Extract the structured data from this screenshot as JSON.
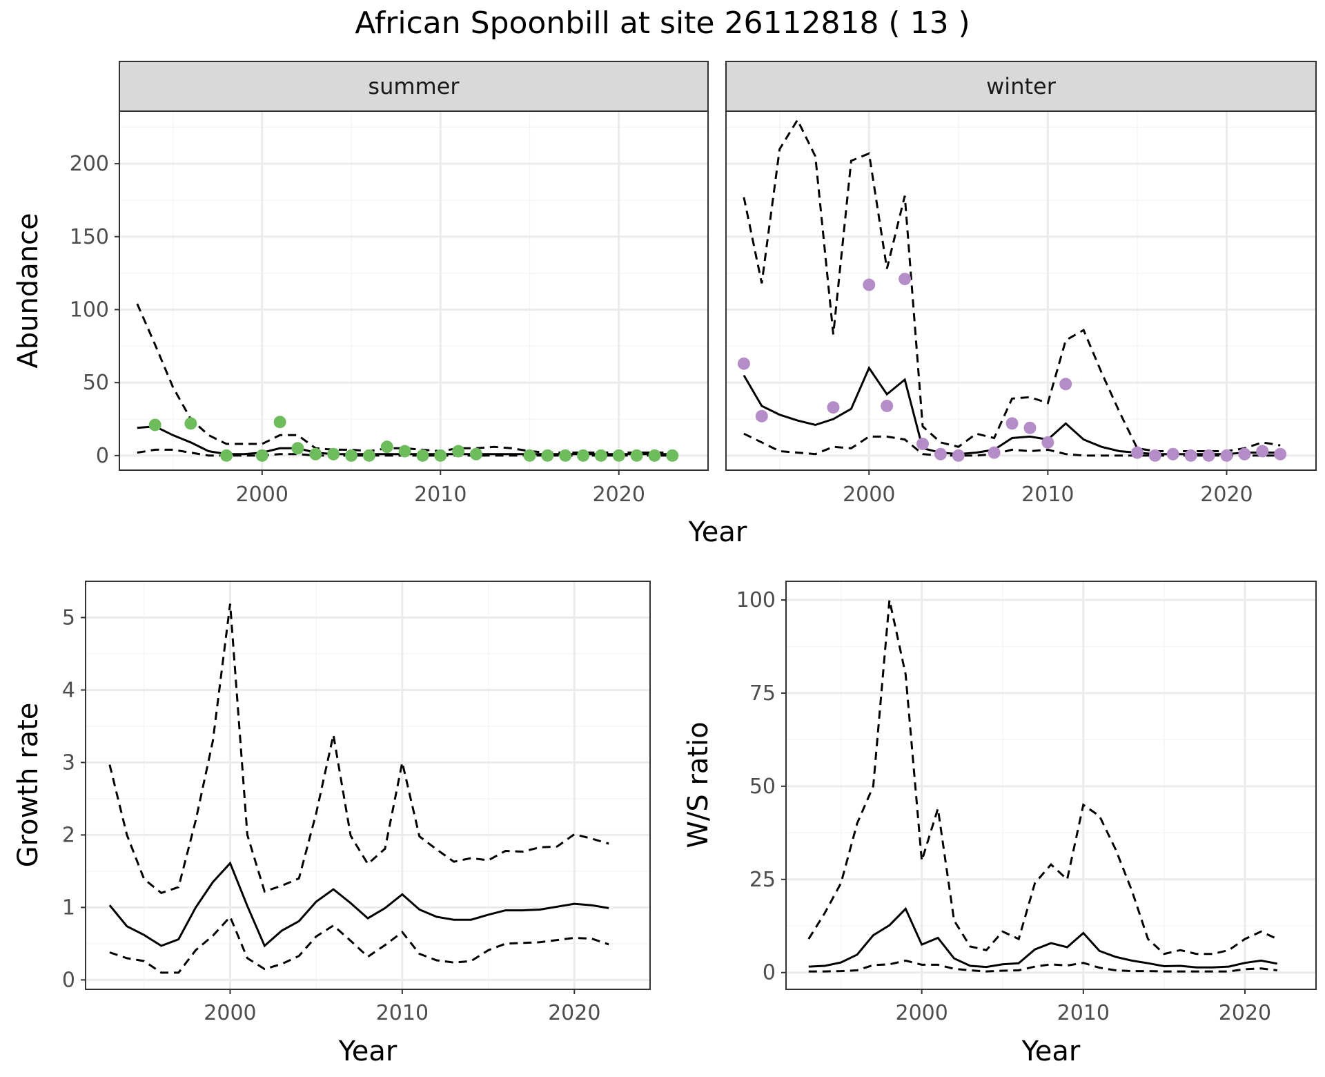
{
  "title": "African Spoonbill at site 26112818 ( 13 )",
  "colors": {
    "summer_points": "#6dbd5d",
    "winter_points": "#b48cc8",
    "line": "#000000",
    "panel_border": "#333333",
    "strip_fill": "#d9d9d9",
    "grid_major": "#ebebeb",
    "grid_minor": "#f5f5f5"
  },
  "chart_data": [
    {
      "type": "line",
      "panel": "summer",
      "xlabel": "Year",
      "ylabel": "Abundance",
      "xlim": [
        1992,
        2025
      ],
      "ylim": [
        -10,
        236
      ],
      "xticks": [
        2000,
        2010,
        2020
      ],
      "yticks": [
        0,
        50,
        100,
        150,
        200
      ],
      "grid": true,
      "x": [
        1993,
        1994,
        1995,
        1996,
        1997,
        1998,
        1999,
        2000,
        2001,
        2002,
        2003,
        2004,
        2005,
        2006,
        2007,
        2008,
        2009,
        2010,
        2011,
        2012,
        2013,
        2014,
        2015,
        2016,
        2017,
        2018,
        2019,
        2020,
        2021,
        2022,
        2023
      ],
      "estimate": [
        19,
        20,
        14,
        9,
        3,
        1,
        1,
        2,
        5,
        5,
        2,
        1,
        1,
        1,
        1,
        1,
        1,
        1,
        1,
        1,
        1,
        1,
        1,
        1,
        1,
        1,
        1,
        1,
        1,
        1,
        1
      ],
      "upper": [
        104,
        76,
        47,
        25,
        14,
        8,
        8,
        8,
        14,
        14,
        5,
        4,
        4,
        3,
        5,
        5,
        4,
        3,
        5,
        5,
        6,
        5,
        3,
        2,
        2,
        2,
        2,
        2,
        2,
        2,
        2
      ],
      "lower": [
        2,
        4,
        4,
        2,
        0,
        0,
        0,
        0,
        1,
        1,
        0,
        0,
        0,
        0,
        0,
        0,
        0,
        0,
        0,
        0,
        0,
        0,
        0,
        0,
        0,
        0,
        0,
        0,
        0,
        0,
        0
      ],
      "observed": [
        [
          1994,
          21
        ],
        [
          1996,
          22
        ],
        [
          1998,
          0
        ],
        [
          2000,
          0
        ],
        [
          2001,
          23
        ],
        [
          2002,
          5
        ],
        [
          2003,
          1
        ],
        [
          2004,
          1
        ],
        [
          2005,
          0
        ],
        [
          2006,
          0
        ],
        [
          2007,
          6
        ],
        [
          2008,
          3
        ],
        [
          2009,
          0
        ],
        [
          2010,
          0
        ],
        [
          2011,
          3
        ],
        [
          2012,
          1
        ],
        [
          2015,
          0
        ],
        [
          2016,
          0
        ],
        [
          2017,
          0
        ],
        [
          2018,
          0
        ],
        [
          2019,
          0
        ],
        [
          2020,
          0
        ],
        [
          2021,
          0
        ],
        [
          2022,
          0
        ],
        [
          2023,
          0
        ]
      ]
    },
    {
      "type": "line",
      "panel": "winter",
      "xlabel": "Year",
      "ylabel": "",
      "xlim": [
        1992,
        2025
      ],
      "ylim": [
        -10,
        236
      ],
      "xticks": [
        2000,
        2010,
        2020
      ],
      "yticks": [
        0,
        50,
        100,
        150,
        200
      ],
      "grid": true,
      "x": [
        1993,
        1994,
        1995,
        1996,
        1997,
        1998,
        1999,
        2000,
        2001,
        2002,
        2003,
        2004,
        2005,
        2006,
        2007,
        2008,
        2009,
        2010,
        2011,
        2012,
        2013,
        2014,
        2015,
        2016,
        2017,
        2018,
        2019,
        2020,
        2021,
        2022,
        2023
      ],
      "estimate": [
        55,
        34,
        28,
        24,
        21,
        25,
        32,
        60,
        42,
        52,
        5,
        2,
        1,
        2,
        4,
        12,
        13,
        11,
        22,
        11,
        6,
        3,
        2,
        1,
        1,
        1,
        1,
        1,
        2,
        2,
        2
      ],
      "upper": [
        177,
        118,
        210,
        230,
        205,
        83,
        202,
        207,
        128,
        178,
        20,
        9,
        6,
        15,
        12,
        39,
        40,
        36,
        79,
        86,
        57,
        30,
        5,
        3,
        3,
        3,
        3,
        3,
        5,
        9,
        7
      ],
      "lower": [
        15,
        9,
        3,
        2,
        1,
        6,
        5,
        13,
        13,
        11,
        1,
        0,
        0,
        0,
        1,
        4,
        3,
        4,
        1,
        0,
        0,
        0,
        0,
        0,
        0,
        0,
        0,
        0,
        0,
        0,
        0
      ],
      "observed": [
        [
          1993,
          63
        ],
        [
          1994,
          27
        ],
        [
          1998,
          33
        ],
        [
          2000,
          117
        ],
        [
          2001,
          34
        ],
        [
          2002,
          121
        ],
        [
          2003,
          8
        ],
        [
          2004,
          1
        ],
        [
          2005,
          0
        ],
        [
          2007,
          2
        ],
        [
          2008,
          22
        ],
        [
          2009,
          19
        ],
        [
          2010,
          9
        ],
        [
          2011,
          49
        ],
        [
          2015,
          2
        ],
        [
          2016,
          0
        ],
        [
          2017,
          1
        ],
        [
          2018,
          0
        ],
        [
          2019,
          0
        ],
        [
          2020,
          0
        ],
        [
          2021,
          1
        ],
        [
          2022,
          3
        ],
        [
          2023,
          1
        ]
      ]
    },
    {
      "type": "line",
      "panel": "growth",
      "xlabel": "Year",
      "ylabel": "Growth rate",
      "xlim": [
        1991.6,
        2024.4
      ],
      "ylim": [
        -0.13,
        5.5
      ],
      "xticks": [
        2000,
        2010,
        2020
      ],
      "yticks": [
        0,
        1,
        2,
        3,
        4,
        5
      ],
      "grid": true,
      "x": [
        1993,
        1994,
        1995,
        1996,
        1997,
        1998,
        1999,
        2000,
        2001,
        2002,
        2003,
        2004,
        2005,
        2006,
        2007,
        2008,
        2009,
        2010,
        2011,
        2012,
        2013,
        2014,
        2015,
        2016,
        2017,
        2018,
        2019,
        2020,
        2021,
        2022
      ],
      "estimate": [
        1.03,
        0.74,
        0.62,
        0.47,
        0.56,
        1.0,
        1.35,
        1.61,
        1.02,
        0.47,
        0.68,
        0.81,
        1.08,
        1.25,
        1.06,
        0.85,
        0.99,
        1.18,
        0.97,
        0.87,
        0.83,
        0.83,
        0.9,
        0.96,
        0.96,
        0.97,
        1.01,
        1.05,
        1.03,
        0.99
      ],
      "upper": [
        2.97,
        2.0,
        1.39,
        1.2,
        1.28,
        2.2,
        3.3,
        5.19,
        2.0,
        1.22,
        1.3,
        1.4,
        2.3,
        3.38,
        1.99,
        1.6,
        1.81,
        3.0,
        1.98,
        1.8,
        1.63,
        1.68,
        1.65,
        1.78,
        1.77,
        1.83,
        1.84,
        2.01,
        1.95,
        1.88
      ],
      "lower": [
        0.38,
        0.3,
        0.26,
        0.1,
        0.1,
        0.41,
        0.61,
        0.87,
        0.3,
        0.15,
        0.22,
        0.33,
        0.6,
        0.75,
        0.54,
        0.32,
        0.48,
        0.66,
        0.36,
        0.27,
        0.24,
        0.26,
        0.41,
        0.5,
        0.51,
        0.52,
        0.55,
        0.58,
        0.57,
        0.49
      ]
    },
    {
      "type": "line",
      "panel": "ws_ratio",
      "xlabel": "Year",
      "ylabel": "W/S ratio",
      "xlim": [
        1991.6,
        2024.4
      ],
      "ylim": [
        -4.5,
        105
      ],
      "xticks": [
        2000,
        2010,
        2020
      ],
      "yticks": [
        0,
        25,
        50,
        75,
        100
      ],
      "grid": true,
      "x": [
        1993,
        1994,
        1995,
        1996,
        1997,
        1998,
        1999,
        2000,
        2001,
        2002,
        2003,
        2004,
        2005,
        2006,
        2007,
        2008,
        2009,
        2010,
        2011,
        2012,
        2013,
        2014,
        2015,
        2016,
        2017,
        2018,
        2019,
        2020,
        2021,
        2022
      ],
      "estimate": [
        1.6,
        1.8,
        2.7,
        4.8,
        10,
        12.7,
        17.1,
        7.5,
        9.3,
        3.8,
        1.8,
        1.5,
        2.2,
        2.5,
        6.2,
        7.9,
        6.8,
        10.6,
        5.8,
        4.2,
        3.2,
        2.5,
        1.7,
        1.8,
        1.4,
        1.4,
        1.6,
        2.6,
        3.2,
        2.4
      ],
      "upper": [
        9,
        16,
        24,
        40,
        50,
        100,
        80,
        30,
        44,
        14,
        7,
        6,
        11,
        9,
        24,
        29,
        25,
        45,
        42,
        33,
        22,
        9,
        5,
        6,
        5,
        5,
        6,
        9,
        11,
        9
      ],
      "lower": [
        0.3,
        0.3,
        0.4,
        0.6,
        2,
        2.2,
        3.2,
        2.1,
        2.1,
        1,
        0.6,
        0.3,
        0.5,
        0.6,
        1.6,
        2.2,
        1.9,
        2.6,
        1.3,
        0.6,
        0.4,
        0.4,
        0.3,
        0.3,
        0.3,
        0.3,
        0.3,
        0.9,
        1.1,
        0.6
      ]
    }
  ],
  "panels": {
    "summer": {
      "strip": "summer",
      "yticks": [
        "0",
        "50",
        "100",
        "150",
        "200"
      ],
      "xticks": [
        "2000",
        "2010",
        "2020"
      ],
      "ylabel": "Abundance"
    },
    "winter": {
      "strip": "winter",
      "xticks": [
        "2000",
        "2010",
        "2020"
      ]
    },
    "shared_xlabel": "Year",
    "growth": {
      "yticks": [
        "0",
        "1",
        "2",
        "3",
        "4",
        "5"
      ],
      "xticks": [
        "2000",
        "2010",
        "2020"
      ],
      "xlabel": "Year",
      "ylabel": "Growth rate"
    },
    "ws_ratio": {
      "yticks": [
        "0",
        "25",
        "50",
        "75",
        "100"
      ],
      "xticks": [
        "2000",
        "2010",
        "2020"
      ],
      "xlabel": "Year",
      "ylabel": "W/S ratio"
    }
  }
}
